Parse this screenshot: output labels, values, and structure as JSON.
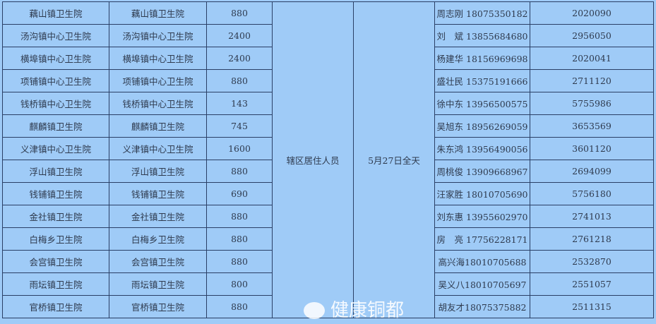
{
  "merged": {
    "target": "辖区居住人员",
    "time": "5月27日全天"
  },
  "rows": [
    {
      "site": "藕山镇卫生院",
      "unit": "藕山镇卫生院",
      "count": "880",
      "contact": "周志刚 18075350182",
      "phone": "2020090"
    },
    {
      "site": "汤沟镇中心卫生院",
      "unit": "汤沟镇中心卫生院",
      "count": "2400",
      "contact": "刘　斌 13855684680",
      "phone": "2956050"
    },
    {
      "site": "横埠镇中心卫生院",
      "unit": "横埠镇中心卫生院",
      "count": "2400",
      "contact": "杨建华 18156969698",
      "phone": "2020041"
    },
    {
      "site": "项铺镇中心卫生院",
      "unit": "项铺镇中心卫生院",
      "count": "880",
      "contact": "盛壮民 15375191666",
      "phone": "2711120"
    },
    {
      "site": "钱桥镇中心卫生院",
      "unit": "钱桥镇中心卫生院",
      "count": "143",
      "contact": "徐中东 13956500575",
      "phone": "5755986"
    },
    {
      "site": "麒麟镇卫生院",
      "unit": "麒麟镇卫生院",
      "count": "745",
      "contact": "吴旭东 18956269059",
      "phone": "3653569"
    },
    {
      "site": "义津镇中心卫生院",
      "unit": "义津镇中心卫生院",
      "count": "1600",
      "contact": "朱东鸿 13956490056",
      "phone": "3601120"
    },
    {
      "site": "浮山镇卫生院",
      "unit": "浮山镇卫生院",
      "count": "880",
      "contact": "周桃俊 13909668967",
      "phone": "2694099"
    },
    {
      "site": "钱铺镇卫生院",
      "unit": "钱铺镇卫生院",
      "count": "690",
      "contact": "汪家胜 18010705690",
      "phone": "5756180"
    },
    {
      "site": "金社镇卫生院",
      "unit": "金社镇卫生院",
      "count": "880",
      "contact": "刘东惠 13955602970",
      "phone": "2741013"
    },
    {
      "site": "白梅乡卫生院",
      "unit": "白梅乡卫生院",
      "count": "880",
      "contact": "房　亮 17756228171",
      "phone": "2761218"
    },
    {
      "site": "会宫镇卫生院",
      "unit": "会宫镇卫生院",
      "count": "880",
      "contact": "高兴海18010705688",
      "phone": "2532870"
    },
    {
      "site": "雨坛镇卫生院",
      "unit": "雨坛镇卫生院",
      "count": "800",
      "contact": "吴义八18010705697",
      "phone": "2551057"
    },
    {
      "site": "官桥镇卫生院",
      "unit": "官桥镇卫生院",
      "count": "880",
      "contact": "胡友才18075375882",
      "phone": "2511315"
    }
  ],
  "watermark": {
    "text": "健康铜都",
    "icon": "wechat-icon"
  }
}
